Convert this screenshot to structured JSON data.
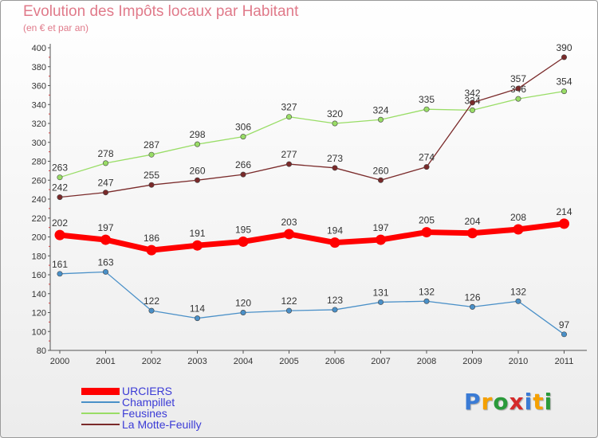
{
  "chart_data": {
    "type": "line",
    "title": "Evolution des Impôts locaux par Habitant",
    "subtitle": "(en € et par an)",
    "xlabel": "",
    "ylabel": "",
    "ylim": [
      80,
      400
    ],
    "yticks": [
      80,
      100,
      120,
      140,
      160,
      180,
      200,
      220,
      240,
      260,
      280,
      300,
      320,
      340,
      360,
      380,
      400
    ],
    "categories": [
      "2000",
      "2001",
      "2002",
      "2003",
      "2004",
      "2005",
      "2006",
      "2007",
      "2008",
      "2009",
      "2010",
      "2011"
    ],
    "grid": false,
    "legend_position": "bottom-left",
    "series": [
      {
        "name": "URCIERS",
        "color": "#ff0000",
        "values": [
          202,
          197,
          186,
          191,
          195,
          203,
          194,
          197,
          205,
          204,
          208,
          214
        ]
      },
      {
        "name": "Champillet",
        "color": "#4a90c8",
        "values": [
          161,
          163,
          122,
          114,
          120,
          122,
          123,
          131,
          132,
          126,
          132,
          97
        ]
      },
      {
        "name": "Feusines",
        "color": "#99dd66",
        "values": [
          263,
          278,
          287,
          298,
          306,
          327,
          320,
          324,
          335,
          334,
          346,
          354
        ]
      },
      {
        "name": "La Motte-Feuilly",
        "color": "#7a2a2a",
        "values": [
          242,
          247,
          255,
          260,
          266,
          277,
          273,
          260,
          274,
          342,
          357,
          390
        ]
      }
    ]
  },
  "logo": {
    "letters": [
      "P",
      "r",
      "o",
      "x",
      "i",
      "t",
      "i"
    ],
    "colors": [
      "#3a7bd5",
      "#f5a000",
      "#2a9a3a",
      "#d52a2a",
      "#3a7bd5",
      "#f5a000",
      "#2a9a3a"
    ]
  }
}
